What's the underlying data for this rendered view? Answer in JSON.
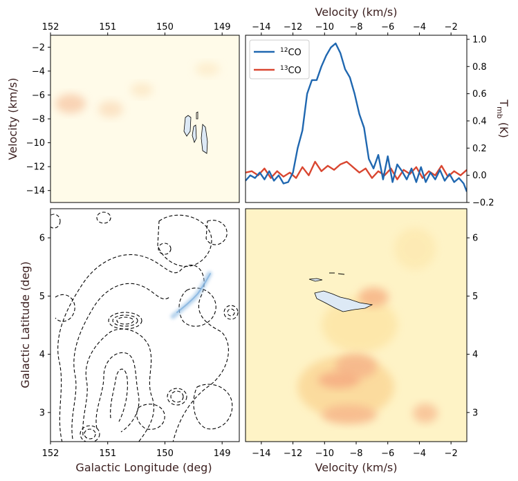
{
  "chart_data": [
    {
      "panel": "top-left",
      "type": "heatmap",
      "title": "",
      "xlabel": "",
      "ylabel": "Velocity (km/s)",
      "xlim": [
        152,
        148.7
      ],
      "ylim": [
        -15,
        -1
      ],
      "xticks": [
        "152",
        "151",
        "150",
        "149"
      ],
      "xtick_values": [
        152,
        151,
        150,
        149
      ],
      "yticks": [
        "−14",
        "−12",
        "−10",
        "−8",
        "−6",
        "−4",
        "−2"
      ],
      "ytick_values": [
        -14,
        -12,
        -10,
        -8,
        -6,
        -4,
        -2
      ],
      "colormap": "YlOrRd (faint)",
      "emission_peaks": [
        {
          "l": 151.6,
          "v": -6.8,
          "strength": 0.55
        },
        {
          "l": 150.9,
          "v": -7.2,
          "strength": 0.35
        },
        {
          "l": 150.5,
          "v": -6.0,
          "strength": 0.25
        }
      ],
      "cloud_contours_13CO": [
        {
          "l": 149.75,
          "v": -8.6
        },
        {
          "l": 149.55,
          "v": -9.4
        },
        {
          "l": 149.4,
          "v": -10.3
        }
      ]
    },
    {
      "panel": "top-right",
      "type": "line",
      "xlabel": "Velocity (km/s)",
      "ylabel": "T_mb (K)",
      "xlim": [
        -15,
        -1
      ],
      "ylim": [
        -0.2,
        1.03
      ],
      "xticks": [
        "−14",
        "−12",
        "−10",
        "−8",
        "−6",
        "−4",
        "−2"
      ],
      "xtick_values": [
        -14,
        -12,
        -10,
        -8,
        -6,
        -4,
        -2
      ],
      "yticks": [
        "−0.2",
        "0.0",
        "0.2",
        "0.4",
        "0.6",
        "0.8",
        "1.0"
      ],
      "ytick_values": [
        -0.2,
        0.0,
        0.2,
        0.4,
        0.6,
        0.8,
        1.0
      ],
      "legend_location": "top-left",
      "series": [
        {
          "name": "12CO",
          "iso": "12",
          "mol": "CO",
          "color": "#1f67b0",
          "x": [
            -15.0,
            -14.7,
            -14.4,
            -14.1,
            -13.8,
            -13.5,
            -13.2,
            -12.9,
            -12.6,
            -12.3,
            -12.0,
            -11.7,
            -11.4,
            -11.1,
            -10.8,
            -10.5,
            -10.2,
            -9.9,
            -9.6,
            -9.3,
            -9.0,
            -8.7,
            -8.4,
            -8.1,
            -7.8,
            -7.5,
            -7.2,
            -6.9,
            -6.6,
            -6.3,
            -6.0,
            -5.7,
            -5.4,
            -5.1,
            -4.8,
            -4.5,
            -4.2,
            -3.9,
            -3.6,
            -3.3,
            -3.0,
            -2.7,
            -2.4,
            -2.1,
            -1.8,
            -1.5,
            -1.2,
            -1.0
          ],
          "y": [
            -0.04,
            0.0,
            -0.02,
            0.02,
            -0.03,
            0.03,
            -0.04,
            0.0,
            -0.06,
            -0.05,
            0.02,
            0.2,
            0.33,
            0.6,
            0.7,
            0.7,
            0.8,
            0.88,
            0.94,
            0.97,
            0.9,
            0.78,
            0.72,
            0.6,
            0.45,
            0.35,
            0.12,
            0.05,
            0.15,
            -0.03,
            0.14,
            -0.05,
            0.08,
            0.03,
            -0.03,
            0.05,
            -0.05,
            0.06,
            -0.05,
            0.02,
            -0.03,
            0.04,
            -0.04,
            0.01,
            -0.05,
            -0.02,
            -0.06,
            -0.12
          ]
        },
        {
          "name": "13CO",
          "iso": "13",
          "mol": "CO",
          "color": "#d94630",
          "x": [
            -15.0,
            -14.6,
            -14.2,
            -13.8,
            -13.4,
            -13.0,
            -12.6,
            -12.2,
            -11.8,
            -11.4,
            -11.0,
            -10.6,
            -10.2,
            -9.8,
            -9.4,
            -9.0,
            -8.6,
            -8.2,
            -7.8,
            -7.4,
            -7.0,
            -6.6,
            -6.2,
            -5.8,
            -5.4,
            -5.0,
            -4.6,
            -4.2,
            -3.8,
            -3.4,
            -3.0,
            -2.6,
            -2.2,
            -1.8,
            -1.4,
            -1.0
          ],
          "y": [
            0.02,
            0.03,
            0.0,
            0.05,
            -0.02,
            0.03,
            -0.01,
            0.02,
            -0.02,
            0.06,
            0.0,
            0.1,
            0.03,
            0.07,
            0.04,
            0.08,
            0.1,
            0.06,
            0.02,
            0.05,
            -0.02,
            0.03,
            0.0,
            0.05,
            -0.03,
            0.04,
            0.01,
            0.06,
            -0.02,
            0.03,
            0.0,
            0.07,
            -0.01,
            0.03,
            0.0,
            0.04
          ]
        }
      ]
    },
    {
      "panel": "bottom-left",
      "type": "heatmap",
      "xlabel": "Galactic Longitude (deg)",
      "ylabel": "Galactic Latitude (deg)",
      "xlim": [
        152,
        148.7
      ],
      "ylim": [
        2.5,
        6.5
      ],
      "xticks": [
        "152",
        "151",
        "150",
        "149"
      ],
      "xtick_values": [
        152,
        151,
        150,
        149
      ],
      "yticks": [
        "3",
        "4",
        "5",
        "6"
      ],
      "ytick_values": [
        3,
        4,
        5,
        6
      ],
      "blue_filament_13CO": [
        {
          "l": 149.9,
          "b": 4.9
        },
        {
          "l": 149.75,
          "b": 5.05
        },
        {
          "l": 149.6,
          "b": 5.2
        },
        {
          "l": 149.5,
          "b": 5.35
        }
      ],
      "dashed_contours": [
        {
          "l": 151.1,
          "b": 4.65,
          "ring": true
        },
        {
          "l": 149.9,
          "b": 3.25,
          "ring": true
        },
        {
          "l": 151.6,
          "b": 2.7,
          "ring": true
        },
        {
          "l": 148.9,
          "b": 4.7,
          "ring": true
        },
        {
          "l": 149.95,
          "b": 6.0,
          "ring": true
        },
        {
          "l": 151.9,
          "b": 6.3,
          "ring": true
        }
      ]
    },
    {
      "panel": "bottom-right",
      "type": "heatmap",
      "xlabel": "Velocity (km/s)",
      "ylabel": "",
      "xlim": [
        -15,
        -1
      ],
      "ylim": [
        2.5,
        6.5
      ],
      "xticks": [
        "−14",
        "−12",
        "−10",
        "−8",
        "−6",
        "−4",
        "−2"
      ],
      "xtick_values": [
        -14,
        -12,
        -10,
        -8,
        -6,
        -4,
        -2
      ],
      "yticks": [
        "3",
        "4",
        "5",
        "6"
      ],
      "ytick_values": [
        3,
        4,
        5,
        6
      ],
      "colormap": "YlOrRd",
      "emission_peaks": [
        {
          "v": -6.5,
          "b": 5.0,
          "strength": 0.7
        },
        {
          "v": -7.5,
          "b": 3.7,
          "strength": 0.8
        },
        {
          "v": -8.5,
          "b": 3.5,
          "strength": 0.6
        },
        {
          "v": -9.0,
          "b": 2.9,
          "strength": 0.6
        },
        {
          "v": -3.8,
          "b": 2.9,
          "strength": 0.55
        },
        {
          "v": -7.0,
          "b": 4.5,
          "strength": 0.4
        }
      ],
      "cloud_13CO": {
        "v_min": -10.6,
        "v_max": -7.2,
        "b_min": 4.8,
        "b_max": 5.35
      }
    }
  ]
}
